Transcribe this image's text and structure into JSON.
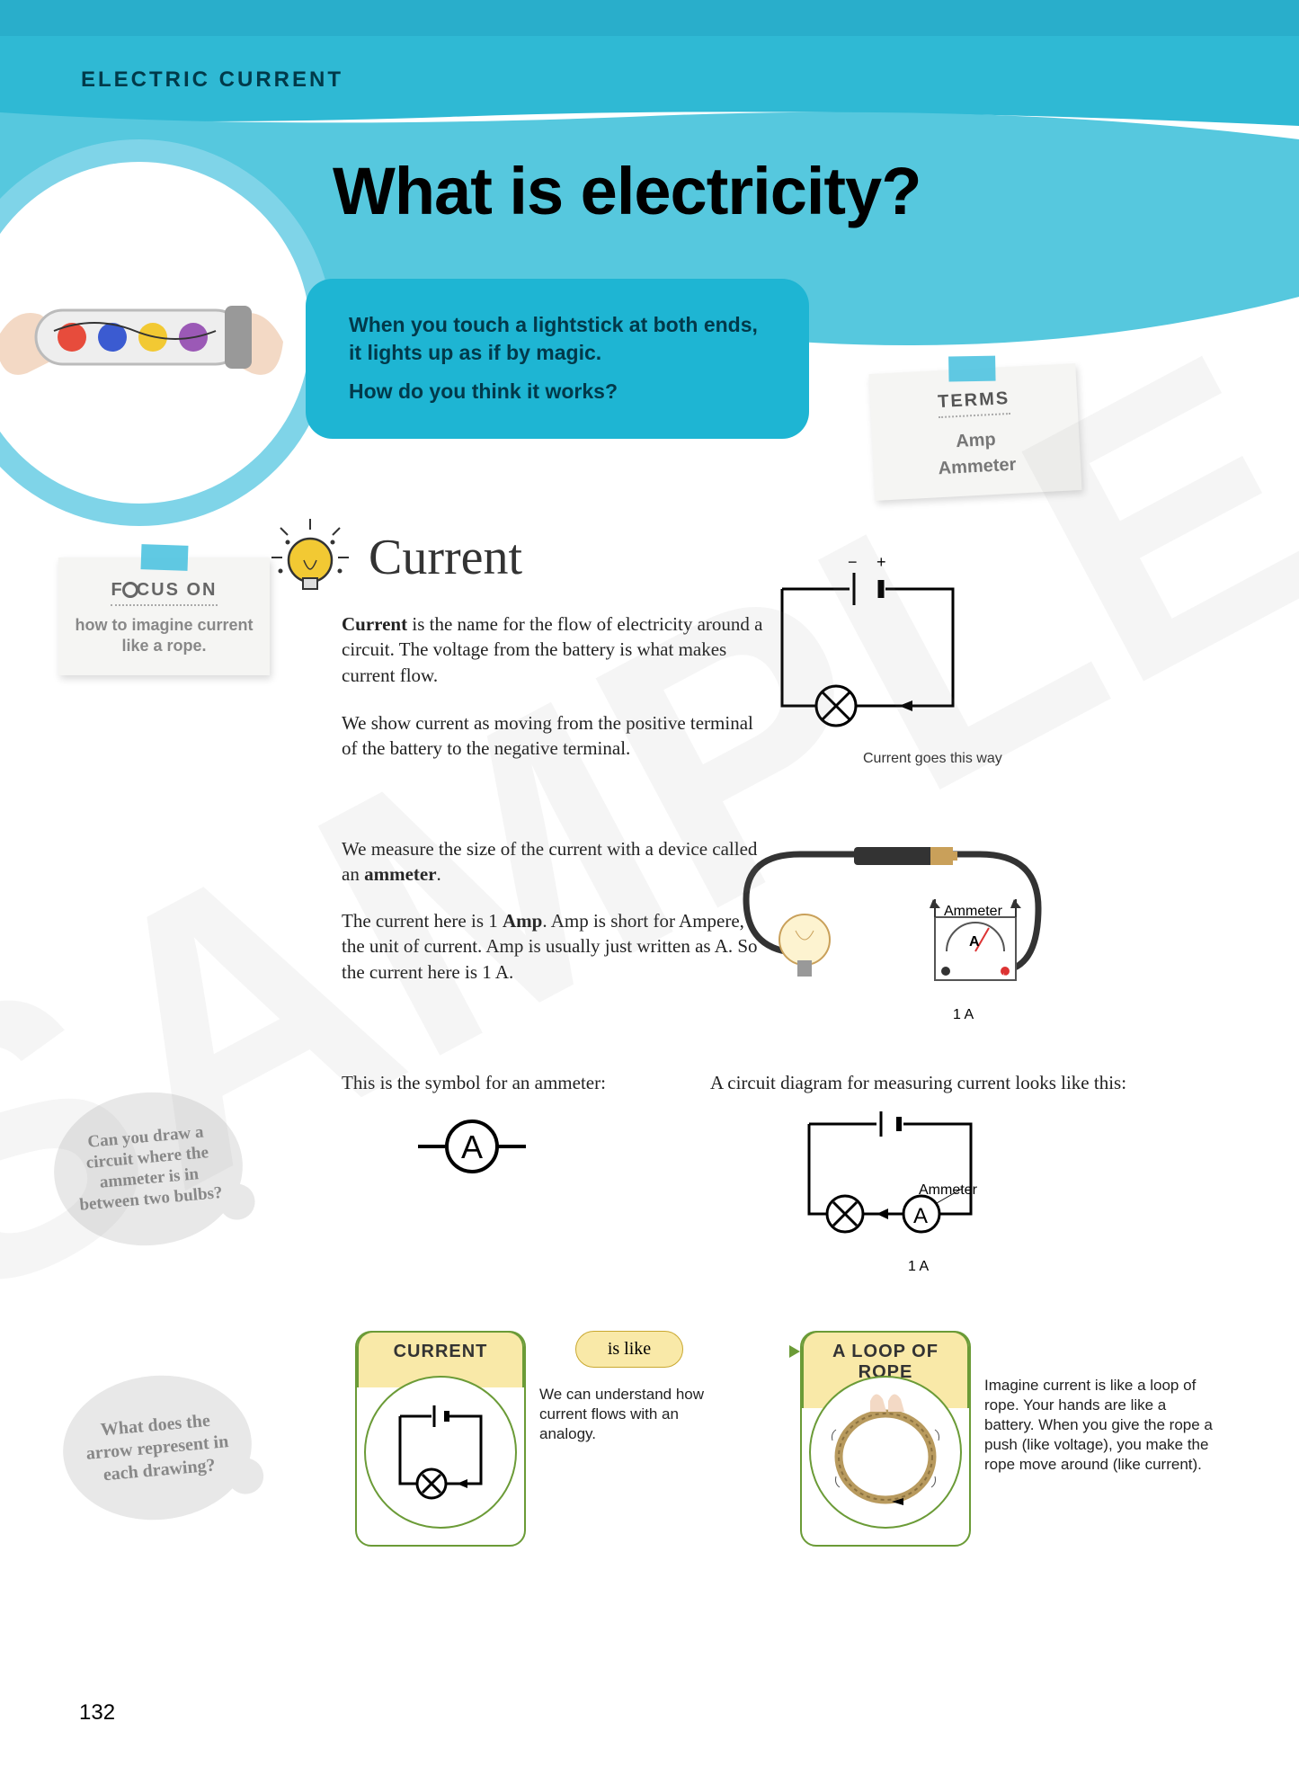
{
  "chapter_label": "ELECTRIC CURRENT",
  "page_title": "What is electricity?",
  "page_number": "132",
  "intro": {
    "line1": "When you touch a lightstick at both ends, it lights up as if by magic.",
    "line2": "How do you think it works?"
  },
  "terms_note": {
    "heading": "TERMS",
    "terms": [
      "Amp",
      "Ammeter"
    ]
  },
  "focus_note": {
    "heading_pre": "F",
    "heading_post": "CUS ON",
    "body": "how to imagine current like a rope."
  },
  "section_heading": "Current",
  "paragraph1_html": "<b>Current</b> is the name for the flow of electricity around a circuit. The voltage from the battery is what makes current flow.",
  "paragraph2": "We show current as moving from the positive terminal of the battery to the negative terminal.",
  "paragraph3_html": "We measure the size of the current with a device called an <b>ammeter</b>.",
  "paragraph4_html": "The current here is 1 <b>Amp</b>. Amp is short for Ampere, the unit of current. Amp is usually just written as A. So the current here is 1 A.",
  "paragraph5": "This is the symbol for an ammeter:",
  "paragraph6": "A circuit diagram for measuring current looks like this:",
  "circuit1": {
    "pos_label": "+",
    "neg_label": "−",
    "caption": "Current goes this way"
  },
  "ammeter_photo": {
    "label": "Ammeter",
    "gauge_letter": "A",
    "value": "1 A"
  },
  "ammeter_symbol_letter": "A",
  "circuit2": {
    "label": "Ammeter",
    "gauge_letter": "A",
    "value": "1 A"
  },
  "bubble1": "Can you draw a circuit where the ammeter is in between two bulbs?",
  "bubble2": "What does the arrow represent in each drawing?",
  "analogy": {
    "box1_title": "CURRENT",
    "connector": "is like",
    "box2_title": "A LOOP OF ROPE",
    "text1": "We can understand how current flows with an analogy.",
    "text2": "Imagine current is like a loop of rope. Your hands are like a battery. When you give the rope a push (like voltage), you make the rope move around (like current)."
  },
  "colors": {
    "header_top": "#2fb9d4",
    "header_mid": "#56c8de",
    "pill": "#1eb5d3",
    "circle_ring": "#7fd4e8",
    "sticky_bg": "#f5f5f3",
    "tape": "#4fc3e0",
    "bubble": "#e8e8e8",
    "analogy_border": "#6b9b37",
    "analogy_tab": "#f9e9a8",
    "bulb_yellow": "#f2c933"
  },
  "watermark_text": "SAMPLE"
}
